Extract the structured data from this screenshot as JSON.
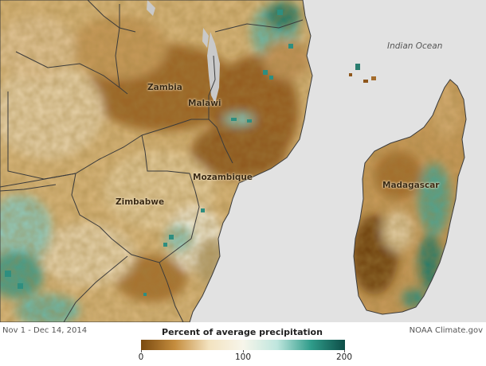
{
  "map": {
    "labels": {
      "zambia": "Zambia",
      "malawi": "Malawi",
      "mozambique": "Mozambique",
      "zimbabwe": "Zimbabwe",
      "madagascar": "Madagascar",
      "ocean": "Indian Ocean"
    },
    "colors": {
      "ocean": "#e2e2e2",
      "border": "#3b3b3b",
      "lake": "#c9c9c9"
    }
  },
  "footer": {
    "date_range": "Nov 1 - Dec 14, 2014",
    "credit": "NOAA Climate.gov"
  },
  "legend": {
    "title": "Percent of average precipitation",
    "ticks": [
      "0",
      "100",
      "200"
    ],
    "range": [
      0,
      200
    ],
    "colors": [
      "#7a4a10",
      "#c58d3e",
      "#f3e3c0",
      "#f7f5ea",
      "#bfe6de",
      "#2f9c8a",
      "#0d4d47"
    ]
  }
}
